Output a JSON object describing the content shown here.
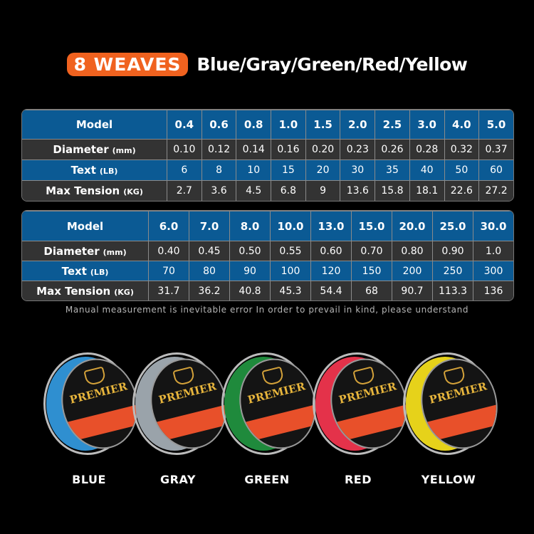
{
  "header": {
    "badge": "8 WEAVES",
    "colors": "Blue/Gray/Green/Red/Yellow"
  },
  "table1": {
    "labels": {
      "model": "Model",
      "diameter": "Diameter",
      "diameter_unit": "(mm)",
      "text": "Text",
      "text_unit": "(LB)",
      "tension": "Max Tension",
      "tension_unit": "(KG)"
    },
    "model": [
      "0.4",
      "0.6",
      "0.8",
      "1.0",
      "1.5",
      "2.0",
      "2.5",
      "3.0",
      "4.0",
      "5.0"
    ],
    "diameter": [
      "0.10",
      "0.12",
      "0.14",
      "0.16",
      "0.20",
      "0.23",
      "0.26",
      "0.28",
      "0.32",
      "0.37"
    ],
    "text": [
      "6",
      "8",
      "10",
      "15",
      "20",
      "30",
      "35",
      "40",
      "50",
      "60"
    ],
    "tension": [
      "2.7",
      "3.6",
      "4.5",
      "6.8",
      "9",
      "13.6",
      "15.8",
      "18.1",
      "22.6",
      "27.2"
    ]
  },
  "table2": {
    "labels": {
      "model": "Model",
      "diameter": "Diameter",
      "diameter_unit": "(mm)",
      "text": "Text",
      "text_unit": "(LB)",
      "tension": "Max Tension",
      "tension_unit": "(KG)"
    },
    "model": [
      "6.0",
      "7.0",
      "8.0",
      "10.0",
      "13.0",
      "15.0",
      "20.0",
      "25.0",
      "30.0"
    ],
    "diameter": [
      "0.40",
      "0.45",
      "0.50",
      "0.55",
      "0.60",
      "0.70",
      "0.80",
      "0.90",
      "1.0"
    ],
    "text": [
      "70",
      "80",
      "90",
      "100",
      "120",
      "150",
      "200",
      "250",
      "300"
    ],
    "tension": [
      "31.7",
      "36.2",
      "40.8",
      "45.3",
      "54.4",
      "68",
      "90.7",
      "113.3",
      "136"
    ]
  },
  "note": "Manual measurement is inevitable error In order to prevail in kind, please understand",
  "spools": [
    {
      "name": "BLUE",
      "color": "#2f8fd0",
      "label_text": "PREMIER"
    },
    {
      "name": "GRAY",
      "color": "#9aa3aa",
      "label_text": "PREMIER"
    },
    {
      "name": "GREEN",
      "color": "#1f8a3c",
      "label_text": "PREMIER"
    },
    {
      "name": "RED",
      "color": "#e4324a",
      "label_text": "PREMIER"
    },
    {
      "name": "YELLOW",
      "color": "#e6d21a",
      "label_text": "PREMIER"
    }
  ],
  "colors": {
    "badge": "#f0621f",
    "table_blue": "#0b5a94",
    "table_dark": "#333333"
  }
}
